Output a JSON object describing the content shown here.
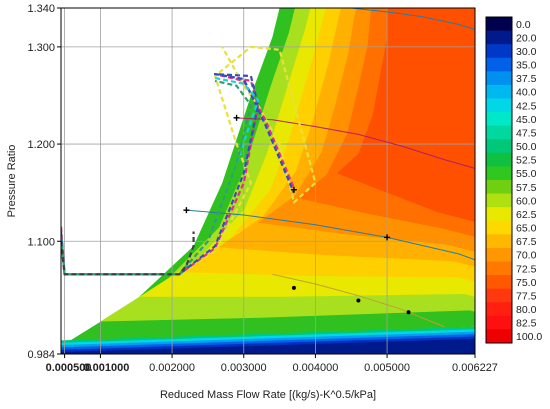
{
  "chart_data": {
    "type": "contour",
    "xlabel": "Reduced Mass Flow Rate [(kg/s)-K^0.5/kPa]",
    "ylabel": "Pressure Ratio",
    "xlim": [
      0.00045,
      0.006227
    ],
    "ylim": [
      0.984,
      1.34
    ],
    "x_ticks": [
      {
        "value": 0.0005,
        "label": "0.000500"
      },
      {
        "value": 0.001,
        "label": "0.001000"
      },
      {
        "value": 0.002,
        "label": "0.002000"
      },
      {
        "value": 0.003,
        "label": "0.003000"
      },
      {
        "value": 0.004,
        "label": "0.004000"
      },
      {
        "value": 0.005,
        "label": "0.005000"
      },
      {
        "value": 0.006227,
        "label": "0.006227"
      }
    ],
    "y_ticks": [
      {
        "value": 0.984,
        "label": "0.984"
      },
      {
        "value": 1.1,
        "label": "1.100"
      },
      {
        "value": 1.2,
        "label": "1.200"
      },
      {
        "value": 1.3,
        "label": "1.300"
      },
      {
        "value": 1.34,
        "label": "1.340"
      }
    ],
    "grid": true,
    "colorbar": {
      "labels": [
        "0.0",
        "20.0",
        "30.0",
        "35.0",
        "37.5",
        "40.0",
        "42.5",
        "45.0",
        "47.5",
        "50.0",
        "52.5",
        "55.0",
        "57.5",
        "60.0",
        "62.5",
        "65.0",
        "67.5",
        "70.0",
        "72.5",
        "75.0",
        "77.5",
        "80.0",
        "82.5",
        "100.0"
      ],
      "colors": [
        "#00004c",
        "#001a8c",
        "#0038c8",
        "#0060e8",
        "#0090f0",
        "#00b8f0",
        "#00d8e8",
        "#00e8c8",
        "#00d8a0",
        "#00c878",
        "#10c040",
        "#30c820",
        "#70d010",
        "#b0e010",
        "#e8e800",
        "#ffd800",
        "#ffb800",
        "#ff9800",
        "#ff7800",
        "#ff5800",
        "#ff3810",
        "#ff2010",
        "#ff1010",
        "#ee0000"
      ]
    },
    "contour_levels": [
      {
        "efficiency": 57.5,
        "color": "#30c020"
      },
      {
        "efficiency": 60.0,
        "color": "#a8e020"
      },
      {
        "efficiency": 62.5,
        "color": "#e8e800"
      },
      {
        "efficiency": 65.0,
        "color": "#ffd000"
      },
      {
        "efficiency": 67.5,
        "color": "#ffb000"
      },
      {
        "efficiency": 70.0,
        "color": "#ff9000"
      },
      {
        "efficiency": 72.5,
        "color": "#ff7000"
      },
      {
        "efficiency": 75.0,
        "color": "#ff5000"
      }
    ],
    "series": [
      {
        "color": "#e8e040",
        "x": [
          0.00045,
          0.0005,
          0.0021,
          0.0026,
          0.0031,
          0.0029,
          0.0026,
          0.0031,
          0.0035,
          0.004,
          0.0037,
          0.0035,
          0.0032,
          0.003,
          0.0027
        ],
        "y": [
          1.115,
          1.066,
          1.066,
          1.09,
          1.16,
          1.2,
          1.27,
          1.3,
          1.297,
          1.16,
          1.14,
          1.2,
          1.24,
          1.26,
          1.3
        ]
      },
      {
        "color": "#e03090",
        "x": [
          0.00045,
          0.0005,
          0.0021,
          0.0026,
          0.003,
          0.0032,
          0.0031,
          0.0026,
          0.003,
          0.0033,
          0.0037
        ],
        "y": [
          1.115,
          1.066,
          1.066,
          1.093,
          1.16,
          1.24,
          1.265,
          1.272,
          1.265,
          1.225,
          1.155
        ]
      },
      {
        "color": "#3050c0",
        "x": [
          0.00045,
          0.0005,
          0.0021,
          0.0026,
          0.003,
          0.0032,
          0.0031,
          0.0026,
          0.003,
          0.0033,
          0.0037
        ],
        "y": [
          1.11,
          1.066,
          1.066,
          1.095,
          1.17,
          1.24,
          1.27,
          1.272,
          1.267,
          1.22,
          1.15
        ]
      },
      {
        "color": "#20d0d8",
        "x": [
          0.00045,
          0.0005,
          0.0021,
          0.0025,
          0.0029,
          0.0032,
          0.003,
          0.0026
        ],
        "y": [
          1.105,
          1.066,
          1.066,
          1.1,
          1.18,
          1.245,
          1.262,
          1.268
        ]
      },
      {
        "color": "#30a070",
        "x": [
          0.00045,
          0.0005,
          0.0021,
          0.0025,
          0.0029,
          0.0031,
          0.0029,
          0.0026
        ],
        "y": [
          1.105,
          1.066,
          1.066,
          1.1,
          1.18,
          1.24,
          1.26,
          1.265
        ]
      },
      {
        "color": "#404040",
        "x": [
          0.00045,
          0.0005,
          0.0021,
          0.0022,
          0.0023,
          0.0023
        ],
        "y": [
          1.1,
          1.066,
          1.066,
          1.075,
          1.095,
          1.11
        ]
      }
    ],
    "operating_lines": [
      {
        "color": "#2a7aa0",
        "x": [
          0.0022,
          0.003,
          0.004,
          0.005,
          0.006,
          0.006227
        ],
        "y": [
          1.132,
          1.127,
          1.117,
          1.104,
          1.087,
          1.081
        ]
      },
      {
        "color": "#b02060",
        "x": [
          0.0029,
          0.0034,
          0.004,
          0.0046,
          0.0052,
          0.0058,
          0.006227
        ],
        "y": [
          1.227,
          1.225,
          1.218,
          1.21,
          1.198,
          1.184,
          1.175
        ]
      },
      {
        "color": "#c0a030",
        "x": [
          0.0034,
          0.004,
          0.0046,
          0.0052,
          0.0058
        ],
        "y": [
          1.066,
          1.056,
          1.044,
          1.03,
          1.012
        ]
      },
      {
        "color": "#2a7aa0",
        "x": [
          0.0045,
          0.005,
          0.0055,
          0.006,
          0.006227
        ],
        "y": [
          1.34,
          1.336,
          1.331,
          1.323,
          1.318
        ]
      }
    ],
    "markers": [
      {
        "x": 0.0022,
        "y": 1.132,
        "shape": "plus"
      },
      {
        "x": 0.005,
        "y": 1.104,
        "shape": "plus"
      },
      {
        "x": 0.0029,
        "y": 1.227,
        "shape": "plus"
      },
      {
        "x": 0.0037,
        "y": 1.153,
        "shape": "plus"
      },
      {
        "x": 0.0037,
        "y": 1.052,
        "shape": "dot"
      },
      {
        "x": 0.0046,
        "y": 1.039,
        "shape": "dot"
      },
      {
        "x": 0.0053,
        "y": 1.027,
        "shape": "dot"
      }
    ]
  }
}
